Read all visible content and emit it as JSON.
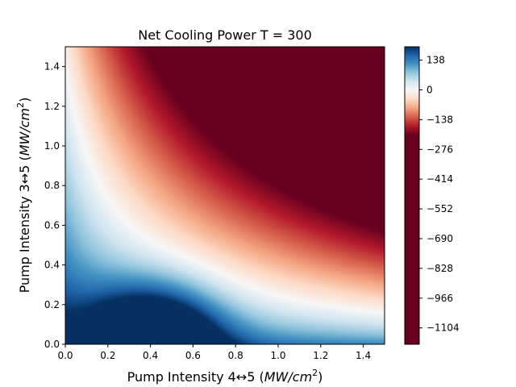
{
  "chart_data": {
    "type": "heatmap",
    "title": "Net Cooling Power T = 300",
    "xlabel": "Pump  Intensity  4↔5 (MW/cm²)",
    "ylabel": "Pump  Intensity  3↔5 (MW/cm²)",
    "xlim": [
      0.0,
      1.5
    ],
    "ylim": [
      0.0,
      1.5
    ],
    "x_ticks": [
      "0.0",
      "0.2",
      "0.4",
      "0.6",
      "0.8",
      "1.0",
      "1.2",
      "1.4"
    ],
    "y_ticks": [
      "0.0",
      "0.2",
      "0.4",
      "0.6",
      "0.8",
      "1.0",
      "1.2",
      "1.4"
    ],
    "colormap": "RdBu",
    "colorbar": {
      "range": [
        -1180,
        200
      ],
      "ticks": [
        "138",
        "0",
        "−138",
        "−276",
        "−414",
        "−552",
        "−690",
        "−828",
        "−966",
        "−1104"
      ],
      "tick_values": [
        138,
        0,
        -138,
        -276,
        -414,
        -552,
        -690,
        -828,
        -966,
        -1104
      ]
    },
    "grid": false,
    "colors": {
      "max_blue": "#053061",
      "zero_white": "#f7f7f7",
      "min_red": "#67001f"
    }
  }
}
